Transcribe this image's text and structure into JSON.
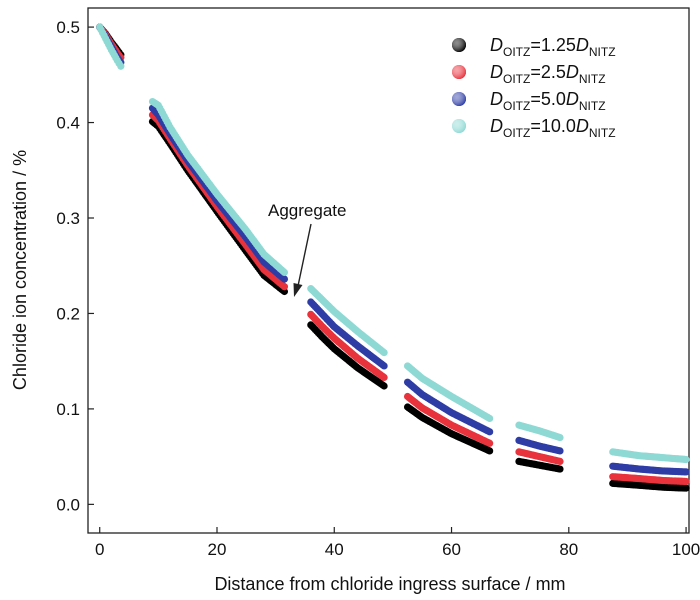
{
  "chart_data": {
    "type": "scatter",
    "title": "",
    "xlabel": "Distance from chloride ingress surface / mm",
    "ylabel": "Chloride ion concentration / %",
    "xlim": [
      -2,
      100.5
    ],
    "ylim": [
      -0.03,
      0.52
    ],
    "xticks": [
      "0",
      "20",
      "40",
      "60",
      "80",
      "100"
    ],
    "yticks": [
      "0.0",
      "0.1",
      "0.2",
      "0.3",
      "0.4",
      "0.5"
    ],
    "grid": false,
    "legend_position": "top-right",
    "annotation": {
      "text": "Aggregate",
      "x": 33.5,
      "y": 0.215
    },
    "series": [
      {
        "name": "D_OITZ=1.25D_NITZ",
        "legend": {
          "d1": "D",
          "sub1": "OITZ",
          "mid": "=1.25",
          "d2": "D",
          "sub2": "NITZ"
        },
        "color": "#000000",
        "segments": [
          {
            "x": [
              0,
              1,
              2,
              3,
              3.6
            ],
            "y": [
              0.5,
              0.493,
              0.484,
              0.476,
              0.471
            ]
          },
          {
            "x": [
              9,
              10,
              12,
              15,
              20,
              25,
              28,
              31.5
            ],
            "y": [
              0.401,
              0.396,
              0.378,
              0.35,
              0.307,
              0.265,
              0.24,
              0.223
            ]
          },
          {
            "x": [
              36,
              38,
              40,
              44,
              48.5
            ],
            "y": [
              0.188,
              0.175,
              0.163,
              0.143,
              0.124
            ]
          },
          {
            "x": [
              52.5,
              55,
              60,
              66.5
            ],
            "y": [
              0.102,
              0.091,
              0.074,
              0.056
            ]
          },
          {
            "x": [
              71.5,
              75,
              78.5
            ],
            "y": [
              0.045,
              0.041,
              0.037
            ]
          },
          {
            "x": [
              87.5,
              92,
              96,
              100
            ],
            "y": [
              0.022,
              0.02,
              0.018,
              0.017
            ]
          }
        ]
      },
      {
        "name": "D_OITZ=2.5D_NITZ",
        "legend": {
          "d1": "D",
          "sub1": "OITZ",
          "mid": "=2.5",
          "d2": "D",
          "sub2": "NITZ"
        },
        "color": "#e8323c",
        "segments": [
          {
            "x": [
              0,
              1,
              2,
              3,
              3.6
            ],
            "y": [
              0.5,
              0.492,
              0.482,
              0.473,
              0.468
            ]
          },
          {
            "x": [
              9,
              10,
              12,
              15,
              20,
              25,
              28,
              31.5
            ],
            "y": [
              0.408,
              0.402,
              0.383,
              0.355,
              0.312,
              0.271,
              0.246,
              0.228
            ]
          },
          {
            "x": [
              36,
              38,
              40,
              44,
              48.5
            ],
            "y": [
              0.199,
              0.186,
              0.174,
              0.153,
              0.133
            ]
          },
          {
            "x": [
              52.5,
              55,
              60,
              66.5
            ],
            "y": [
              0.113,
              0.101,
              0.083,
              0.064
            ]
          },
          {
            "x": [
              71.5,
              75,
              78.5
            ],
            "y": [
              0.055,
              0.05,
              0.045
            ]
          },
          {
            "x": [
              87.5,
              92,
              96,
              100
            ],
            "y": [
              0.029,
              0.027,
              0.025,
              0.024
            ]
          }
        ]
      },
      {
        "name": "D_OITZ=5.0D_NITZ",
        "legend": {
          "d1": "D",
          "sub1": "OITZ",
          "mid": "=5.0",
          "d2": "D",
          "sub2": "NITZ"
        },
        "color": "#2e3da5",
        "segments": [
          {
            "x": [
              0,
              1,
              2,
              3,
              3.6
            ],
            "y": [
              0.5,
              0.49,
              0.479,
              0.468,
              0.463
            ]
          },
          {
            "x": [
              9,
              10,
              12,
              15,
              20,
              25,
              28,
              31.5
            ],
            "y": [
              0.415,
              0.408,
              0.388,
              0.36,
              0.318,
              0.279,
              0.254,
              0.236
            ]
          },
          {
            "x": [
              36,
              38,
              40,
              44,
              48.5
            ],
            "y": [
              0.212,
              0.199,
              0.186,
              0.166,
              0.145
            ]
          },
          {
            "x": [
              52.5,
              55,
              60,
              66.5
            ],
            "y": [
              0.128,
              0.115,
              0.096,
              0.076
            ]
          },
          {
            "x": [
              71.5,
              75,
              78.5
            ],
            "y": [
              0.067,
              0.061,
              0.056
            ]
          },
          {
            "x": [
              87.5,
              92,
              96,
              100
            ],
            "y": [
              0.04,
              0.037,
              0.035,
              0.034
            ]
          }
        ]
      },
      {
        "name": "D_OITZ=10.0D_NITZ",
        "legend": {
          "d1": "D",
          "sub1": "OITZ",
          "mid": "=10.0",
          "d2": "D",
          "sub2": "NITZ"
        },
        "color": "#8fd9d4",
        "segments": [
          {
            "x": [
              0,
              1,
              2,
              3,
              3.6
            ],
            "y": [
              0.5,
              0.488,
              0.476,
              0.465,
              0.459
            ]
          },
          {
            "x": [
              9,
              10,
              12,
              15,
              20,
              25,
              28,
              31.5
            ],
            "y": [
              0.422,
              0.418,
              0.395,
              0.366,
              0.325,
              0.287,
              0.262,
              0.243
            ]
          },
          {
            "x": [
              36,
              38,
              40,
              44,
              48.5
            ],
            "y": [
              0.226,
              0.214,
              0.202,
              0.181,
              0.159
            ]
          },
          {
            "x": [
              52.5,
              55,
              60,
              66.5
            ],
            "y": [
              0.145,
              0.132,
              0.113,
              0.09
            ]
          },
          {
            "x": [
              71.5,
              75,
              78.5
            ],
            "y": [
              0.083,
              0.077,
              0.07
            ]
          },
          {
            "x": [
              87.5,
              92,
              96,
              100
            ],
            "y": [
              0.055,
              0.051,
              0.049,
              0.047
            ]
          }
        ]
      }
    ]
  }
}
